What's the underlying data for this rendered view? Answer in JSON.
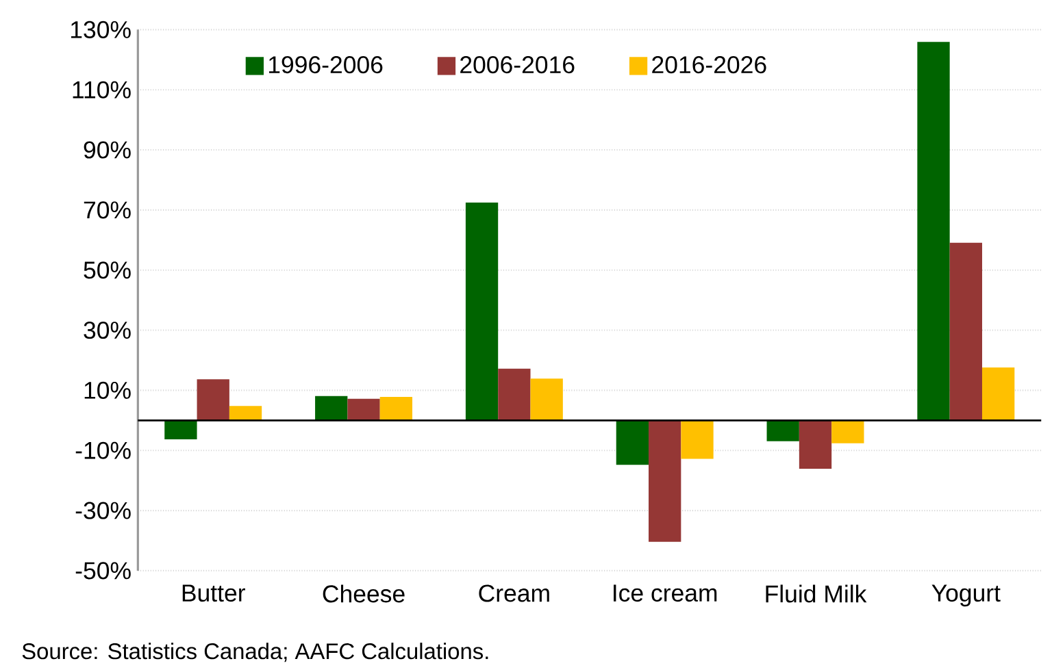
{
  "chart_data": {
    "type": "bar",
    "categories": [
      "Butter",
      "Cheese",
      "Cream",
      "Ice cream",
      "Fluid Milk",
      "Yogurt"
    ],
    "series": [
      {
        "name": "1996-2006",
        "color": "#006400",
        "values": [
          -6.3,
          8.1,
          72.5,
          -14.8,
          -6.9,
          125.9
        ]
      },
      {
        "name": "2006-2016",
        "color": "#953735",
        "values": [
          13.7,
          7.2,
          17.2,
          -40.4,
          -16.1,
          59.1
        ]
      },
      {
        "name": "2016-2026",
        "color": "#ffc000",
        "values": [
          4.8,
          7.8,
          13.9,
          -12.8,
          -7.6,
          17.6
        ]
      }
    ],
    "ylim": [
      -50,
      130
    ],
    "yticks": [
      {
        "value": -50,
        "label": "-50%"
      },
      {
        "value": -30,
        "label": "-30%"
      },
      {
        "value": -10,
        "label": "-10%"
      },
      {
        "value": 10,
        "label": "10%"
      },
      {
        "value": 30,
        "label": "30%"
      },
      {
        "value": 50,
        "label": "50%"
      },
      {
        "value": 70,
        "label": "70%"
      },
      {
        "value": 90,
        "label": "90%"
      },
      {
        "value": 110,
        "label": "110%"
      },
      {
        "value": 130,
        "label": "130%"
      }
    ],
    "grid": "y",
    "legend": "top",
    "annotations": [
      "Source: Statistics Canada; AAFC Calculations."
    ]
  }
}
